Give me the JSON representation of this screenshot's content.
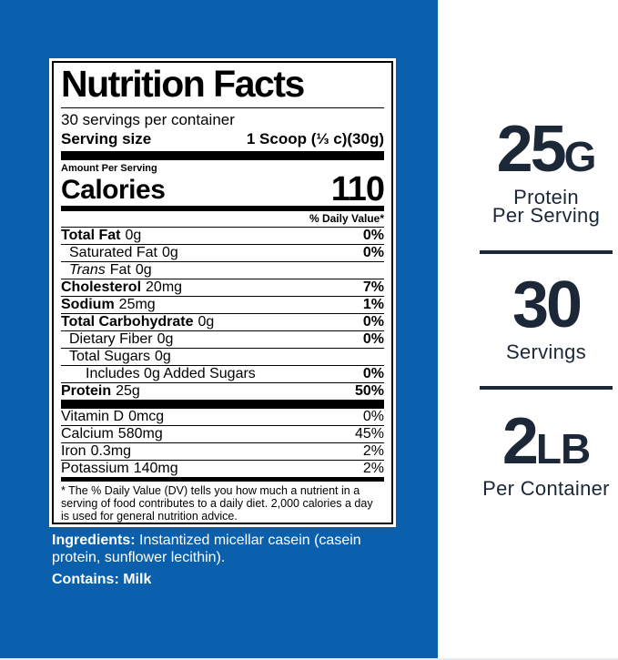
{
  "colors": {
    "background_blue": "#0a60ad",
    "panel_white": "#ffffff",
    "stat_navy": "#1c2737",
    "label_text": "#000000",
    "ingredients_text": "#ffffff"
  },
  "label": {
    "title": "Nutrition Facts",
    "servings_per_container": "30 servings per container",
    "serving_size_label": "Serving size",
    "serving_size_value": "1 Scoop (⅓ c)(30g)",
    "amount_per_serving": "Amount Per Serving",
    "calories_label": "Calories",
    "calories_value": "110",
    "daily_value_header": "% Daily Value*",
    "rows": [
      {
        "name": "Total Fat",
        "amount": "0g",
        "dv": "0%"
      },
      {
        "name": "Saturated Fat",
        "amount": "0g",
        "dv": "0%"
      },
      {
        "name_italic": "Trans",
        "name_rest": "Fat",
        "amount": "0g",
        "dv": ""
      },
      {
        "name": "Cholesterol",
        "amount": "20mg",
        "dv": "7%"
      },
      {
        "name": "Sodium",
        "amount": "25mg",
        "dv": "1%"
      },
      {
        "name": "Total Carbohydrate",
        "amount": "0g",
        "dv": "0%"
      },
      {
        "name": "Dietary Fiber",
        "amount": "0g",
        "dv": "0%"
      },
      {
        "name": "Total Sugars",
        "amount": "0g",
        "dv": ""
      },
      {
        "name": "Includes 0g Added Sugars",
        "amount": "",
        "dv": "0%"
      },
      {
        "name": "Protein",
        "amount": "25g",
        "dv": "50%"
      }
    ],
    "micronutrients": [
      {
        "name": "Vitamin D",
        "amount": "0mcg",
        "dv": "0%"
      },
      {
        "name": "Calcium",
        "amount": "580mg",
        "dv": "45%"
      },
      {
        "name": "Iron",
        "amount": "0.3mg",
        "dv": "2%"
      },
      {
        "name": "Potassium",
        "amount": "140mg",
        "dv": "2%"
      }
    ],
    "footnote": "* The % Daily Value (DV) tells you how much a nutrient in a serving of food contributes to a daily diet. 2,000 calories a day is used for general nutrition advice."
  },
  "ingredients": {
    "label": "Ingredients:",
    "text": " Instantized micellar casein (casein protein, sunflower lecithin).",
    "contains": "Contains: Milk"
  },
  "side_panel": {
    "stats": [
      {
        "value": "25",
        "unit": "G",
        "caption_lines": [
          "Protein",
          "Per Serving"
        ]
      },
      {
        "value": "30",
        "unit": "",
        "caption_lines": [
          "Servings"
        ]
      },
      {
        "value": "2",
        "unit": "LB",
        "caption_lines": [
          "Per Container"
        ]
      }
    ]
  }
}
